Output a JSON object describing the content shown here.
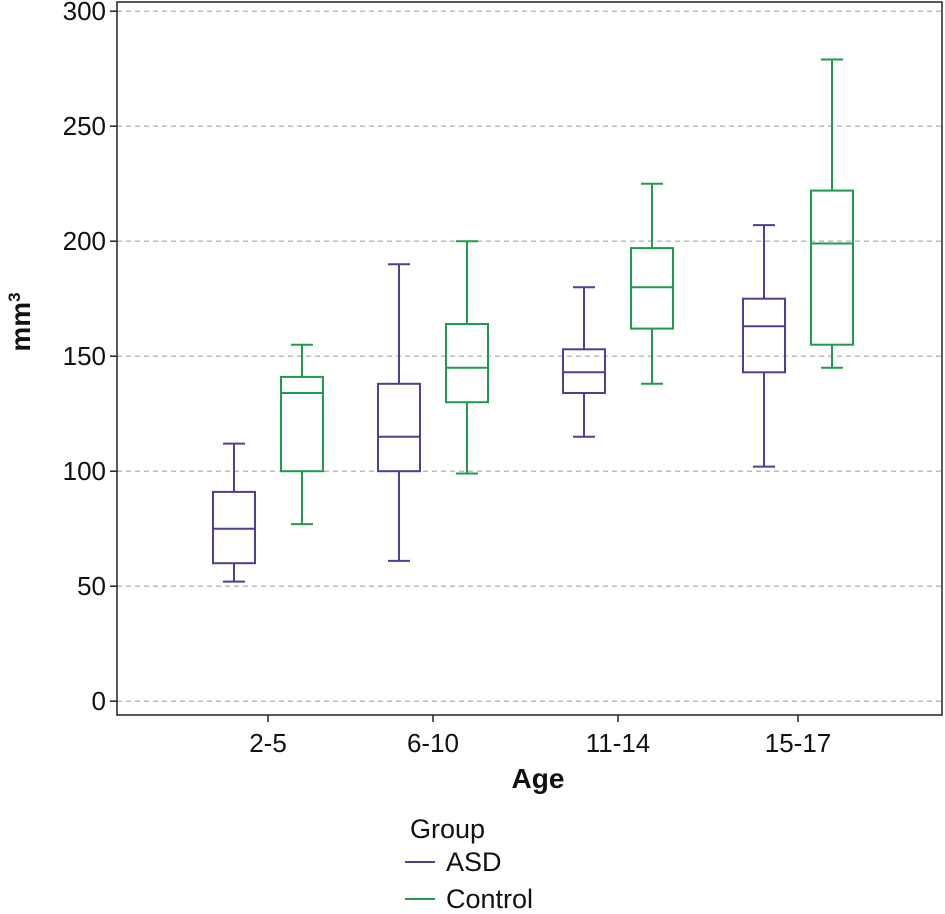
{
  "chart_data": {
    "type": "boxplot",
    "xlabel": "Age",
    "ylabel_base": "mm",
    "ylabel_sup": "3",
    "categories": [
      "2-5",
      "6-10",
      "11-14",
      "15-17"
    ],
    "yticks": [
      0,
      50,
      100,
      150,
      200,
      250,
      300
    ],
    "ylim": [
      -6,
      304
    ],
    "grid": "horizontal dashed",
    "legend": {
      "title": "Group",
      "placement": "bottom-center",
      "items": [
        "ASD",
        "Control"
      ]
    },
    "series": [
      {
        "name": "ASD",
        "color": "#4b3f96",
        "boxes": [
          {
            "min": 52,
            "q1": 60,
            "median": 75,
            "q3": 91,
            "max": 112
          },
          {
            "min": 61,
            "q1": 100,
            "median": 115,
            "q3": 138,
            "max": 190
          },
          {
            "min": 115,
            "q1": 134,
            "median": 143,
            "q3": 153,
            "max": 180
          },
          {
            "min": 102,
            "q1": 143,
            "median": 163,
            "q3": 175,
            "max": 207
          }
        ]
      },
      {
        "name": "Control",
        "color": "#1e9b4b",
        "boxes": [
          {
            "min": 77,
            "q1": 100,
            "median": 134,
            "q3": 141,
            "max": 155
          },
          {
            "min": 99,
            "q1": 130,
            "median": 145,
            "q3": 164,
            "max": 200
          },
          {
            "min": 138,
            "q1": 162,
            "median": 180,
            "q3": 197,
            "max": 225
          },
          {
            "min": 145,
            "q1": 155,
            "median": 199,
            "q3": 222,
            "max": 279
          }
        ]
      }
    ]
  }
}
